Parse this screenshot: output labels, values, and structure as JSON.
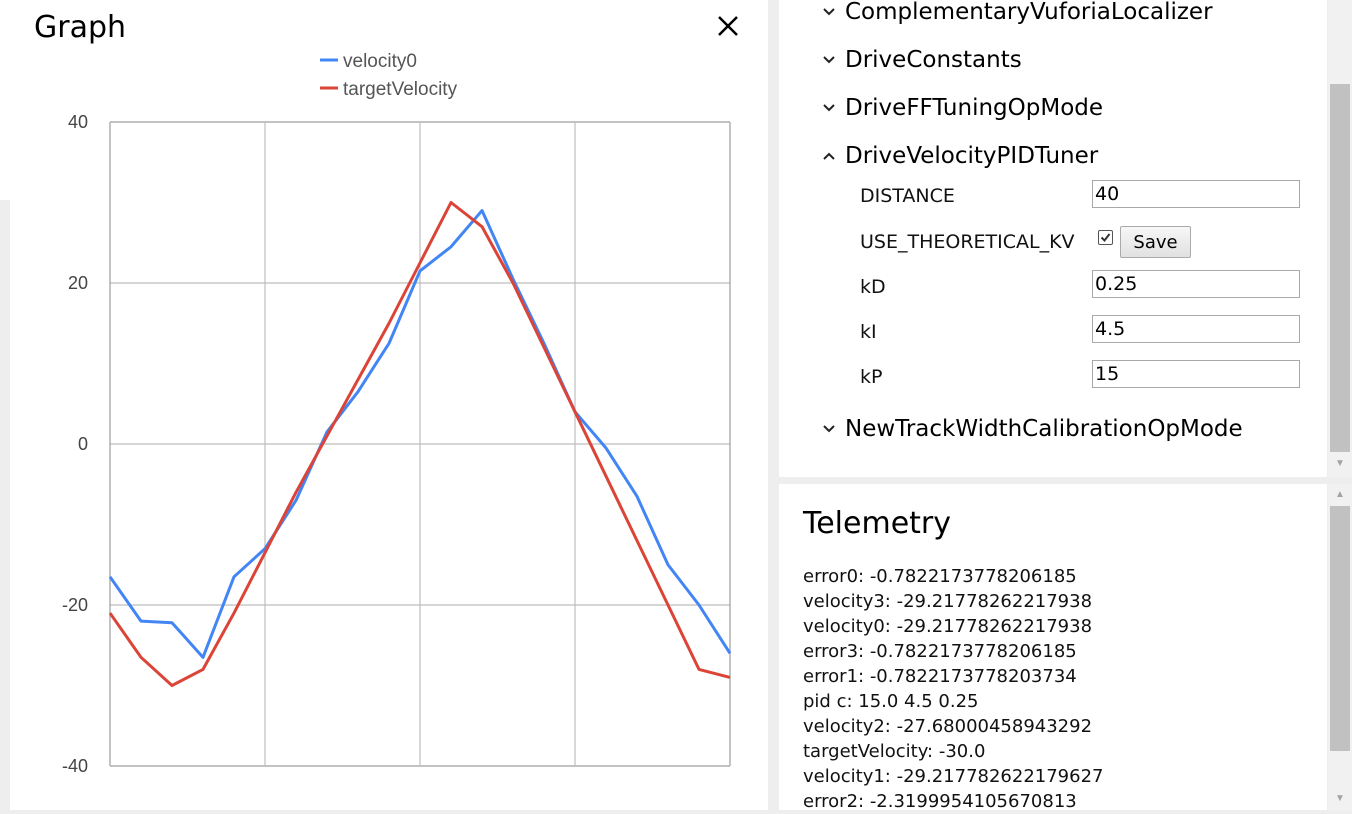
{
  "graph": {
    "title": "Graph",
    "close_icon": "close-icon"
  },
  "chart_data": {
    "type": "line",
    "legend_placement": "top-center",
    "grid": true,
    "ylim": [
      -40,
      40
    ],
    "y_ticks": [
      "40",
      "20",
      "0",
      "-20",
      "-40"
    ],
    "x": [
      0,
      1,
      2,
      3,
      4,
      5,
      6,
      7,
      8,
      9,
      10,
      11,
      12,
      13,
      14,
      15,
      16,
      17,
      18,
      19,
      20
    ],
    "series": [
      {
        "name": "velocity0",
        "color": "#4285f4",
        "values": [
          -16.5,
          -22,
          -22.2,
          -26.5,
          -16.5,
          -13,
          -7,
          1.5,
          6.5,
          12.5,
          21.5,
          24.5,
          29,
          20.5,
          12.5,
          4,
          -0.5,
          -6.5,
          -15,
          -20,
          -26
        ]
      },
      {
        "name": "targetVelocity",
        "color": "#db4437",
        "values": [
          -21,
          -26.5,
          -30,
          -28,
          -21,
          -13.5,
          -6,
          1,
          8,
          15,
          22.5,
          30,
          27,
          20,
          12,
          4,
          -4,
          -12,
          -20,
          -28,
          -29
        ]
      }
    ]
  },
  "config": {
    "items": [
      {
        "label": "ComplementaryVuforiaLocalizer",
        "expanded": false
      },
      {
        "label": "DriveConstants",
        "expanded": false
      },
      {
        "label": "DriveFFTuningOpMode",
        "expanded": false
      },
      {
        "label": "DriveVelocityPIDTuner",
        "expanded": true
      },
      {
        "label": "NewTrackWidthCalibrationOpMode",
        "expanded": false
      }
    ],
    "fields": {
      "distance_label": "DISTANCE",
      "distance_value": "40",
      "use_kv_label": "USE_THEORETICAL_KV",
      "use_kv_checked": true,
      "save_label": "Save",
      "kd_label": "kD",
      "kd_value": "0.25",
      "ki_label": "kI",
      "ki_value": "4.5",
      "kp_label": "kP",
      "kp_value": "15"
    }
  },
  "telemetry": {
    "title": "Telemetry",
    "lines": [
      "error0: -0.7822173778206185",
      "velocity3: -29.21778262217938",
      "velocity0: -29.21778262217938",
      "error3: -0.7822173778206185",
      "error1: -0.7822173778203734",
      "pid c: 15.0 4.5 0.25",
      "velocity2: -27.68000458943292",
      "targetVelocity: -30.0",
      "velocity1: -29.217782622179627",
      "error2: -2.3199954105670813"
    ]
  }
}
